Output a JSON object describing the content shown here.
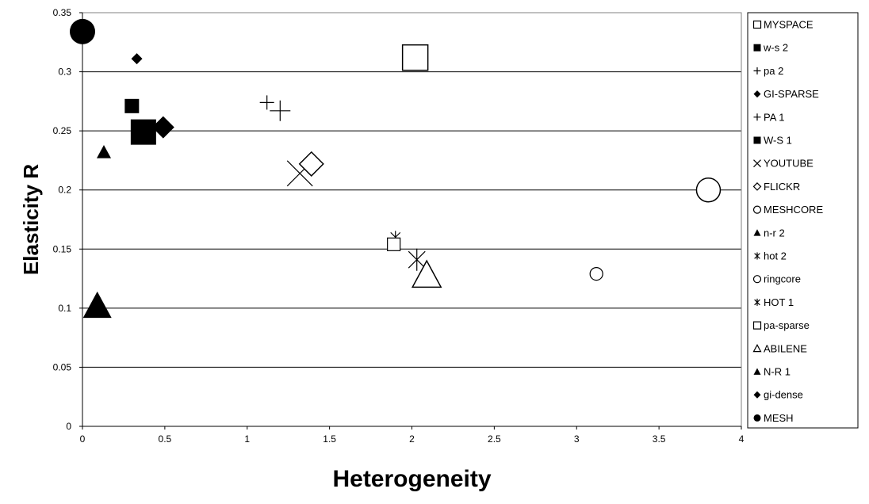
{
  "chart_data": {
    "type": "scatter",
    "title": "",
    "xlabel": "Heterogeneity",
    "ylabel": "Elasticity R",
    "xlim": [
      0,
      4
    ],
    "ylim": [
      0,
      0.35
    ],
    "x_ticks": [
      "0",
      "0.5",
      "1",
      "1.5",
      "2",
      "2.5",
      "3",
      "3.5",
      "4"
    ],
    "y_ticks": [
      "0",
      "0.05",
      "0.1",
      "0.15",
      "0.2",
      "0.25",
      "0.3",
      "0.35"
    ],
    "grid": "horizontal",
    "legend_position": "right",
    "series": [
      {
        "name": "MYSPACE",
        "marker": "square-open",
        "marker_size": "large",
        "points": [
          [
            2.02,
            0.312
          ]
        ]
      },
      {
        "name": "w-s 2",
        "marker": "square-filled",
        "marker_size": "small",
        "points": [
          [
            0.3,
            0.271
          ]
        ]
      },
      {
        "name": "pa 2",
        "marker": "plus",
        "marker_size": "small",
        "points": [
          [
            1.12,
            0.274
          ]
        ]
      },
      {
        "name": "GI-SPARSE",
        "marker": "diamond-filled",
        "marker_size": "small",
        "points": [
          [
            0.33,
            0.311
          ]
        ]
      },
      {
        "name": "PA 1",
        "marker": "plus",
        "marker_size": "large",
        "points": [
          [
            1.2,
            0.267
          ]
        ]
      },
      {
        "name": "W-S 1",
        "marker": "square-filled",
        "marker_size": "large",
        "points": [
          [
            0.37,
            0.249
          ]
        ]
      },
      {
        "name": "YOUTUBE",
        "marker": "x",
        "marker_size": "large",
        "points": [
          [
            1.32,
            0.214
          ]
        ]
      },
      {
        "name": "FLICKR",
        "marker": "diamond-open",
        "marker_size": "large",
        "points": [
          [
            1.39,
            0.222
          ]
        ]
      },
      {
        "name": "MESHCORE",
        "marker": "circle-open",
        "marker_size": "large",
        "points": [
          [
            3.8,
            0.2
          ]
        ]
      },
      {
        "name": "n-r 2",
        "marker": "triangle-filled",
        "marker_size": "small",
        "points": [
          [
            0.13,
            0.232
          ]
        ]
      },
      {
        "name": "hot 2",
        "marker": "asterisk",
        "marker_size": "small",
        "points": [
          [
            1.9,
            0.16
          ]
        ]
      },
      {
        "name": "ringcore",
        "marker": "circle-open",
        "marker_size": "small",
        "points": [
          [
            3.12,
            0.129
          ]
        ]
      },
      {
        "name": "HOT 1",
        "marker": "asterisk",
        "marker_size": "large",
        "points": [
          [
            2.03,
            0.141
          ]
        ]
      },
      {
        "name": "pa-sparse",
        "marker": "square-open",
        "marker_size": "small",
        "points": [
          [
            1.89,
            0.154
          ]
        ]
      },
      {
        "name": "ABILENE",
        "marker": "triangle-open",
        "marker_size": "large",
        "points": [
          [
            2.09,
            0.128
          ]
        ]
      },
      {
        "name": "N-R 1",
        "marker": "triangle-filled",
        "marker_size": "large",
        "points": [
          [
            0.09,
            0.102
          ]
        ]
      },
      {
        "name": "gi-dense",
        "marker": "diamond-filled",
        "marker_size": "large",
        "points": [
          [
            0.49,
            0.253
          ]
        ]
      },
      {
        "name": "MESH",
        "marker": "circle-filled",
        "marker_size": "large",
        "points": [
          [
            0.0,
            0.334
          ]
        ]
      }
    ]
  },
  "colors": {
    "marker": "#000000",
    "marker_open_stroke": "#000000",
    "open_fill": "#ffffff",
    "gridline": "#000000",
    "plot_border": "#808080"
  }
}
